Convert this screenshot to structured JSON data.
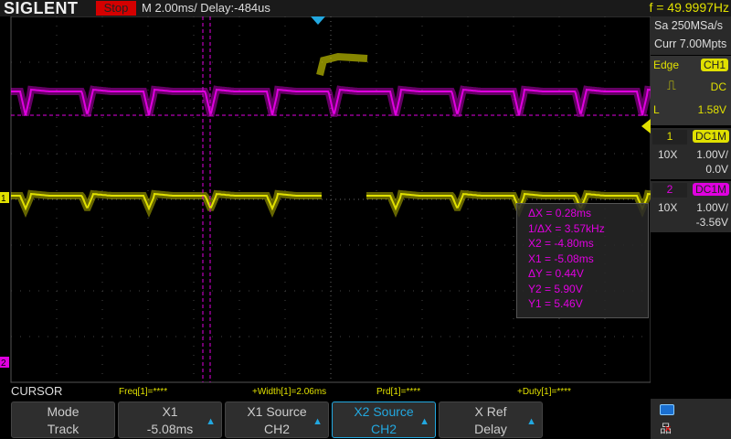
{
  "header": {
    "brand": "SIGLENT",
    "run_state": "Stop",
    "timebase": "M 2.00ms/ Delay:-484us",
    "frequency": "f = 49.9997Hz"
  },
  "acquisition": {
    "sample_rate": "Sa 250MSa/s",
    "memory": "Curr 7.00Mpts"
  },
  "trigger": {
    "type": "Edge",
    "source": "CH1",
    "slope_icon": "rising-edge-icon",
    "coupling": "DC",
    "level_label": "L",
    "level": "1.58V"
  },
  "channels": [
    {
      "num": "1",
      "coupling": "DC1M",
      "probe": "10X",
      "scale": "1.00V/",
      "offset": "0.0V",
      "color": "#e0e000"
    },
    {
      "num": "2",
      "coupling": "DC1M",
      "probe": "10X",
      "scale": "1.00V/",
      "offset": "-3.56V",
      "color": "#e000e0"
    }
  ],
  "cursor_readout": [
    "ΔX = 0.28ms",
    "1/ΔX = 3.57kHz",
    "X2 = -4.80ms",
    "X1 = -5.08ms",
    "ΔY = 0.44V",
    "Y2 = 5.90V",
    "Y1 = 5.46V"
  ],
  "menu": {
    "title": "CURSOR",
    "measurements": [
      "Freq[1]=****",
      "+Width[1]=2.06ms",
      "Prd[1]=****",
      "+Duty[1]=****"
    ],
    "buttons": [
      {
        "top": "Mode",
        "bottom": "Track"
      },
      {
        "top": "X1",
        "bottom": "-5.08ms"
      },
      {
        "top": "X1 Source",
        "bottom": "CH2"
      },
      {
        "top": "X2 Source",
        "bottom": "CH2"
      },
      {
        "top": "X Ref",
        "bottom": "Delay"
      }
    ]
  },
  "markers": {
    "ch1": "1",
    "ch2": "2"
  },
  "status_icons": [
    "usb-icon",
    "network-disconnected-icon"
  ]
}
